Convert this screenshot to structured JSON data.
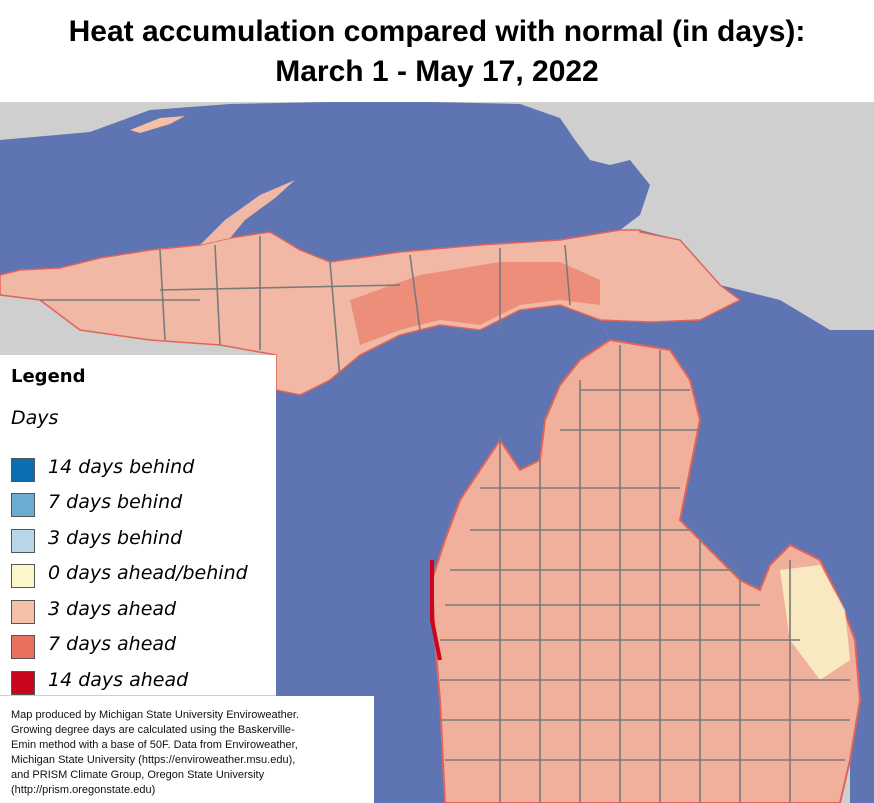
{
  "title": {
    "line1": "Heat accumulation compared with normal (in days):",
    "line2": "March 1 - May 17, 2022"
  },
  "colors": {
    "water": "#5f74b2",
    "land_outside": "#cfcfcf",
    "county_border": "#7a7a7a"
  },
  "legend": {
    "heading": "Legend",
    "subheading": "Days",
    "items": [
      {
        "label": "14 days behind",
        "color": "#0a6fb0"
      },
      {
        "label": "7 days behind",
        "color": "#6aadd0"
      },
      {
        "label": "3 days behind",
        "color": "#b7d7e8"
      },
      {
        "label": "0 days ahead/behind",
        "color": "#fbf7c9"
      },
      {
        "label": "3 days ahead",
        "color": "#f4c0a8"
      },
      {
        "label": "7 days ahead",
        "color": "#e7705f"
      },
      {
        "label": "14 days ahead",
        "color": "#c8071e"
      }
    ]
  },
  "credit": {
    "text": "Map produced by Michigan State University Enviroweather.\nGrowing degree days are calculated using the Baskerville-\nEmin method with a base of 50F.  Data from Enviroweather,\nMichigan State University (https://enviroweather.msu.edu),\nand PRISM Climate Group, Oregon State University\n(http://prism.oregonstate.edu)"
  }
}
